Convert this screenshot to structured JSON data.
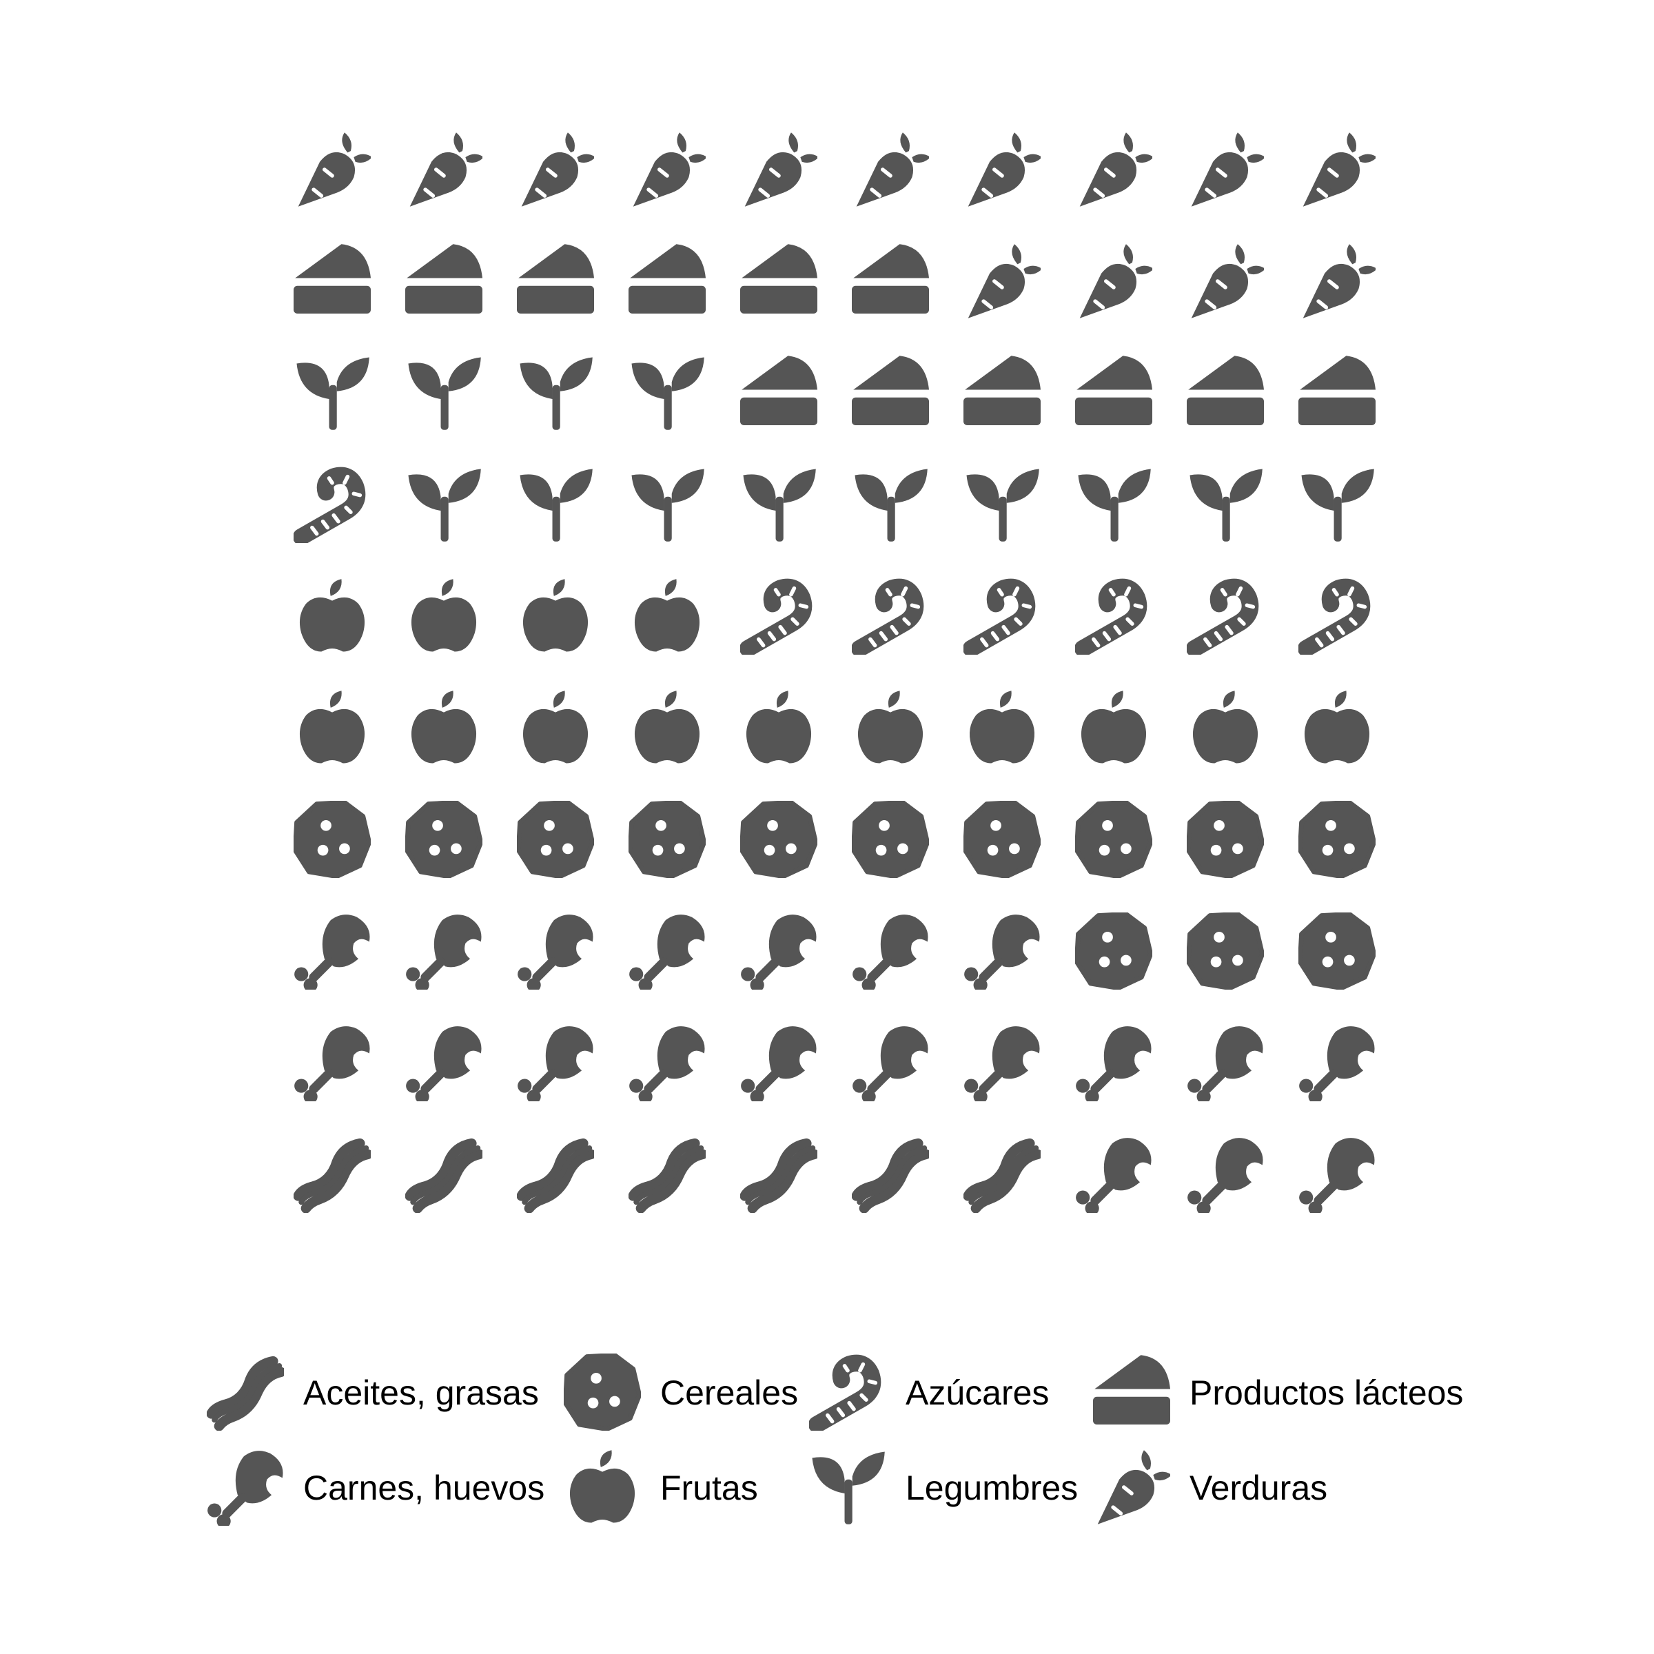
{
  "icon_color": "#555555",
  "background_color": "#ffffff",
  "chart_data": {
    "type": "waffle",
    "total": 100,
    "columns": 10,
    "rows": 10,
    "fill_order": "bottom-left-to-top-right, row by row",
    "categories": [
      {
        "key": "aceites",
        "label": "Aceites, grasas",
        "icon": "bacon-icon",
        "value": 7
      },
      {
        "key": "carnes",
        "label": "Carnes, huevos",
        "icon": "drumstick-icon",
        "value": 20
      },
      {
        "key": "cereales",
        "label": "Cereales",
        "icon": "cookie-icon",
        "value": 13
      },
      {
        "key": "frutas",
        "label": "Frutas",
        "icon": "apple-icon",
        "value": 14
      },
      {
        "key": "azucares",
        "label": "Azúcares",
        "icon": "candy-cane-icon",
        "value": 7
      },
      {
        "key": "legumbres",
        "label": "Legumbres",
        "icon": "seedling-icon",
        "value": 13
      },
      {
        "key": "lacteos",
        "label": "Productos lácteos",
        "icon": "cheese-icon",
        "value": 12
      },
      {
        "key": "verduras",
        "label": "Verduras",
        "icon": "carrot-icon",
        "value": 14
      }
    ],
    "legend": {
      "placement": "bottom",
      "rows": [
        [
          "aceites",
          "cereales",
          "azucares",
          "lacteos"
        ],
        [
          "carnes",
          "frutas",
          "legumbres",
          "verduras"
        ]
      ]
    }
  }
}
